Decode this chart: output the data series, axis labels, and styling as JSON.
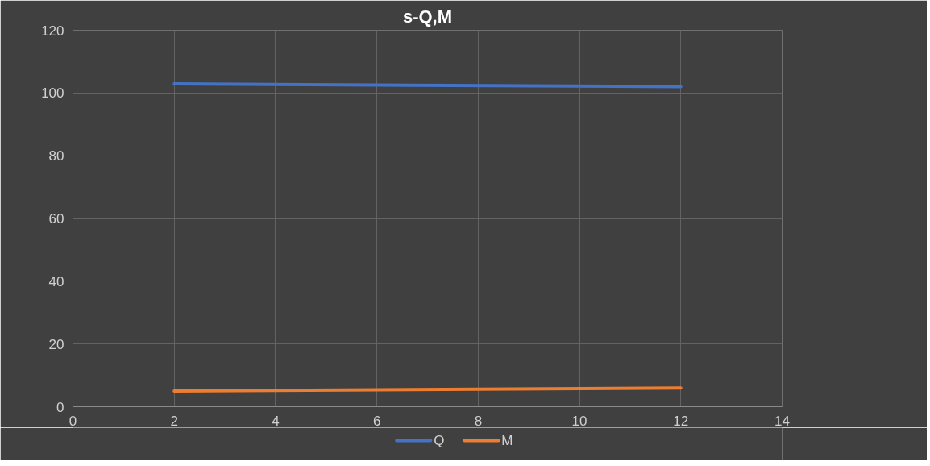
{
  "chart_data": {
    "type": "line",
    "title": "s-Q,M",
    "x": [
      2,
      12
    ],
    "series": [
      {
        "name": "Q",
        "color": "#4472c4",
        "values": [
          102.9,
          102
        ]
      },
      {
        "name": "M",
        "color": "#ed7d31",
        "values": [
          5,
          6
        ]
      }
    ],
    "xlim": [
      0,
      14
    ],
    "xticks": [
      0,
      2,
      4,
      6,
      8,
      10,
      12,
      14
    ],
    "ylim": [
      0,
      120
    ],
    "yticks": [
      0,
      20,
      40,
      60,
      80,
      100,
      120
    ],
    "grid": true,
    "legend": "bottom",
    "marker": "none",
    "line_style": "solid"
  }
}
